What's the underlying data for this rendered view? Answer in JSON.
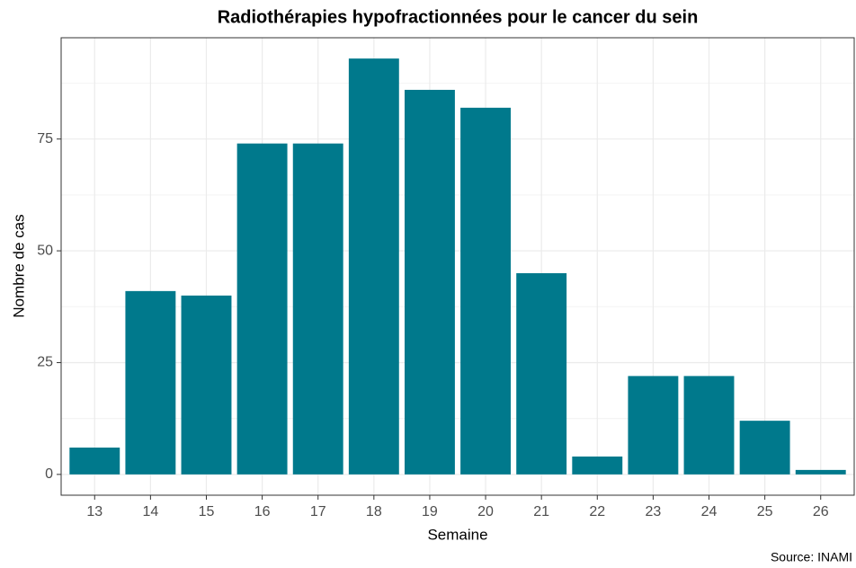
{
  "chart_data": {
    "type": "bar",
    "title": "Radiothérapies hypofractionnées pour le cancer du sein",
    "x_label": "Semaine",
    "y_label": "Nombre de cas",
    "caption": "Source: INAMI",
    "categories": [
      "13",
      "14",
      "15",
      "16",
      "17",
      "18",
      "19",
      "20",
      "21",
      "22",
      "23",
      "24",
      "25",
      "26"
    ],
    "values": [
      6,
      41,
      40,
      74,
      74,
      93,
      86,
      82,
      45,
      4,
      22,
      22,
      12,
      1
    ],
    "color": "#00798c",
    "ylim": [
      -4.65,
      97.65
    ],
    "yticks": [
      0,
      25,
      50,
      75
    ],
    "grid": true
  }
}
